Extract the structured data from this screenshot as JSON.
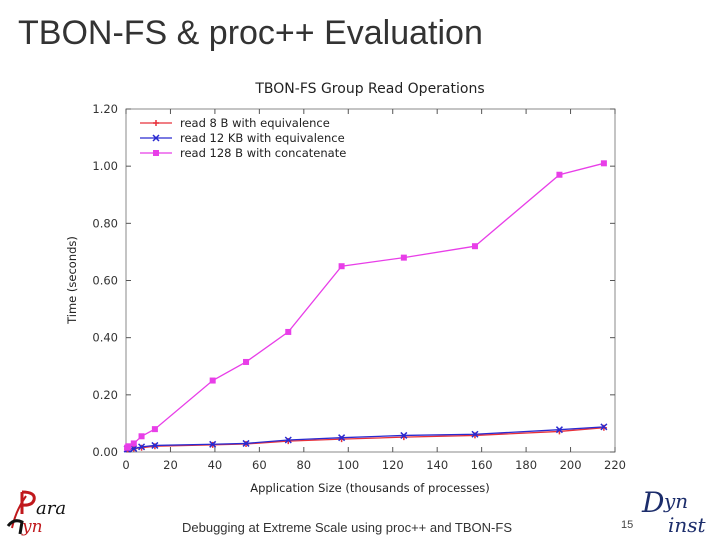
{
  "slide": {
    "title": "TBON-FS & proc++ Evaluation",
    "footer": "Debugging at Extreme Scale using proc++ and TBON-FS",
    "page_number": "15",
    "logo_left": "Paradyn",
    "logo_right": "Dyninst"
  },
  "chart_data": {
    "type": "line",
    "title": "TBON-FS Group Read Operations",
    "xlabel": "Application Size (thousands of processes)",
    "ylabel": "Time (seconds)",
    "xlim": [
      0,
      220
    ],
    "ylim": [
      0,
      1.2
    ],
    "x_ticks": [
      "0",
      "20",
      "40",
      "60",
      "80",
      "100",
      "120",
      "140",
      "160",
      "180",
      "200",
      "220"
    ],
    "y_ticks": [
      "0.00",
      "0.20",
      "0.40",
      "0.60",
      "0.80",
      "1.00",
      "1.20"
    ],
    "legend_position": "top-left",
    "grid": false,
    "series": [
      {
        "name": "read 8 B with equivalence",
        "color": "#e8313a",
        "marker": "plus",
        "x": [
          0.5,
          1,
          3.5,
          7,
          13,
          39,
          54,
          73,
          97,
          125,
          157,
          195,
          215
        ],
        "y": [
          0.01,
          0.01,
          0.012,
          0.015,
          0.02,
          0.025,
          0.028,
          0.038,
          0.045,
          0.052,
          0.058,
          0.072,
          0.085
        ]
      },
      {
        "name": "read 12 KB with equivalence",
        "color": "#2a2ad0",
        "marker": "x",
        "x": [
          0.5,
          1,
          3.5,
          7,
          13,
          39,
          54,
          73,
          97,
          125,
          157,
          195,
          215
        ],
        "y": [
          0.01,
          0.01,
          0.012,
          0.018,
          0.023,
          0.027,
          0.03,
          0.042,
          0.05,
          0.058,
          0.062,
          0.078,
          0.088
        ]
      },
      {
        "name": "read 128 B with concatenate",
        "color": "#e83ee8",
        "marker": "square",
        "x": [
          0.5,
          1,
          3.5,
          7,
          13,
          39,
          54,
          73,
          97,
          125,
          157,
          195,
          215
        ],
        "y": [
          0.015,
          0.02,
          0.03,
          0.055,
          0.08,
          0.25,
          0.315,
          0.42,
          0.65,
          0.68,
          0.72,
          0.97,
          1.01
        ]
      }
    ]
  }
}
